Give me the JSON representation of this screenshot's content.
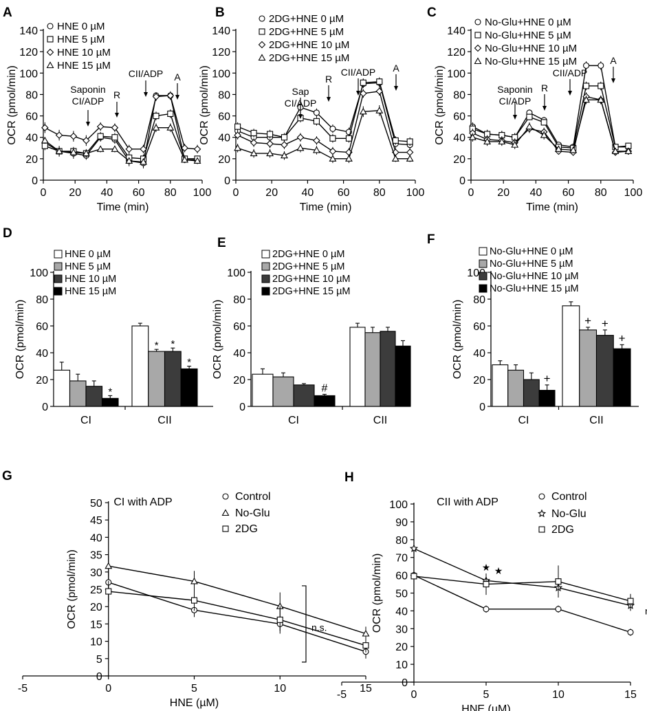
{
  "figure": {
    "colors": {
      "axis": "#000000",
      "bar_0": "#ffffff",
      "bar_5": "#a8a8a8",
      "bar_10": "#3c3c3c",
      "bar_15": "#000000",
      "line": "#000000",
      "marker_fill": "#ffffff"
    }
  },
  "chart_data": [
    {
      "id": "A",
      "panel_letter": "A",
      "type": "line",
      "xlabel": "Time (min)",
      "ylabel": "OCR (pmol/min)",
      "xlim": [
        0,
        100
      ],
      "ylim": [
        0,
        140
      ],
      "xticks": [
        "0",
        "20",
        "40",
        "60",
        "80",
        "100"
      ],
      "yticks": [
        "0",
        "20",
        "40",
        "60",
        "80",
        "100",
        "120",
        "140"
      ],
      "x": [
        1,
        10,
        19,
        27,
        36,
        45,
        54,
        63,
        71,
        80,
        89,
        97
      ],
      "series": [
        {
          "name": "HNE 0 µM",
          "marker": "circle",
          "values": [
            35,
            27,
            25,
            23,
            40,
            38,
            18,
            16,
            79,
            79,
            19,
            19
          ],
          "errors": [
            5,
            5,
            5,
            4,
            4,
            4,
            5,
            5,
            3,
            3,
            3,
            3
          ]
        },
        {
          "name": "HNE 5 µM",
          "marker": "square",
          "values": [
            32,
            27,
            27,
            25,
            41,
            40,
            21,
            20,
            60,
            62,
            20,
            20
          ],
          "errors": [
            4,
            4,
            4,
            4,
            4,
            4,
            4,
            4,
            4,
            4,
            3,
            3
          ]
        },
        {
          "name": "HNE 10 µM",
          "marker": "diamond",
          "values": [
            49,
            42,
            41,
            37,
            50,
            49,
            29,
            29,
            78,
            79,
            30,
            29
          ],
          "errors": [
            5,
            5,
            5,
            5,
            4,
            4,
            4,
            4,
            4,
            4,
            4,
            4
          ]
        },
        {
          "name": "HNE 15 µM",
          "marker": "triangle",
          "values": [
            37,
            27,
            26,
            25,
            29,
            29,
            18,
            17,
            49,
            49,
            19,
            18
          ],
          "errors": [
            3,
            3,
            3,
            3,
            3,
            3,
            3,
            3,
            4,
            4,
            3,
            3
          ]
        }
      ],
      "annotations": [
        {
          "lines": [
            "Saponin",
            "CI/ADP"
          ],
          "x": 28
        },
        {
          "lines": [
            "R"
          ],
          "x": 45
        },
        {
          "lines": [
            "CII/ADP"
          ],
          "x": 63
        },
        {
          "lines": [
            "A"
          ],
          "x": 81
        }
      ]
    },
    {
      "id": "B",
      "panel_letter": "B",
      "type": "line",
      "xlabel": "Time (min)",
      "ylabel": "OCR (pmol/min)",
      "xlim": [
        0,
        100
      ],
      "ylim": [
        0,
        140
      ],
      "xticks": [
        "0",
        "20",
        "40",
        "60",
        "80",
        "100"
      ],
      "yticks": [
        "0",
        "20",
        "40",
        "60",
        "80",
        "100",
        "120",
        "140"
      ],
      "x": [
        1,
        10,
        19,
        27,
        36,
        45,
        54,
        63,
        71,
        80,
        89,
        97
      ],
      "series": [
        {
          "name": "2DG+HNE 0 µM",
          "marker": "circle",
          "values": [
            46,
            40,
            40,
            40,
            68,
            63,
            48,
            45,
            90,
            91,
            34,
            33
          ],
          "errors": [
            4,
            4,
            4,
            4,
            4,
            4,
            4,
            4,
            4,
            4,
            4,
            4
          ]
        },
        {
          "name": "2DG+HNE 5 µM",
          "marker": "square",
          "values": [
            50,
            44,
            43,
            40,
            58,
            55,
            39,
            39,
            91,
            92,
            37,
            36
          ],
          "errors": [
            4,
            4,
            4,
            4,
            4,
            4,
            4,
            4,
            4,
            4,
            4,
            4
          ]
        },
        {
          "name": "2DG+HNE 10 µM",
          "marker": "diamond",
          "values": [
            42,
            35,
            34,
            33,
            40,
            37,
            27,
            26,
            81,
            83,
            26,
            26
          ],
          "errors": [
            4,
            4,
            4,
            4,
            4,
            4,
            4,
            4,
            4,
            4,
            4,
            4
          ]
        },
        {
          "name": "2DG+HNE 15 µM",
          "marker": "triangle",
          "values": [
            30,
            25,
            25,
            23,
            30,
            28,
            20,
            20,
            64,
            65,
            20,
            20
          ],
          "errors": [
            4,
            4,
            4,
            4,
            4,
            4,
            4,
            4,
            5,
            5,
            3,
            3
          ]
        }
      ],
      "annotations": [
        {
          "lines": [
            "Sap",
            "CI/ADP"
          ],
          "x": 28
        },
        {
          "lines": [
            "R"
          ],
          "x": 45
        },
        {
          "lines": [
            "CII/ADP"
          ],
          "x": 63
        },
        {
          "lines": [
            "A"
          ],
          "x": 87
        }
      ]
    },
    {
      "id": "C",
      "panel_letter": "C",
      "type": "line",
      "xlabel": "Time (min)",
      "ylabel": "OCR (pmol/min)",
      "xlim": [
        0,
        100
      ],
      "ylim": [
        0,
        140
      ],
      "xticks": [
        "0",
        "20",
        "40",
        "60",
        "80",
        "100"
      ],
      "yticks": [
        "0",
        "20",
        "40",
        "60",
        "80",
        "100",
        "120",
        "140"
      ],
      "x": [
        1,
        10,
        19,
        27,
        36,
        45,
        54,
        63,
        71,
        80,
        89,
        97
      ],
      "series": [
        {
          "name": "No-Glu+HNE 0 µM",
          "marker": "circle",
          "values": [
            50,
            43,
            42,
            40,
            63,
            56,
            33,
            31,
            107,
            107,
            31,
            31
          ],
          "errors": [
            4,
            4,
            4,
            4,
            3,
            3,
            3,
            3,
            4,
            4,
            3,
            3
          ]
        },
        {
          "name": "No-Glu+HNE 5 µM",
          "marker": "square",
          "values": [
            48,
            43,
            42,
            40,
            59,
            54,
            31,
            30,
            88,
            88,
            31,
            32
          ],
          "errors": [
            4,
            4,
            4,
            4,
            3,
            3,
            3,
            3,
            4,
            4,
            3,
            3
          ]
        },
        {
          "name": "No-Glu+HNE 10 µM",
          "marker": "diamond",
          "values": [
            44,
            38,
            37,
            35,
            48,
            45,
            27,
            26,
            78,
            75,
            26,
            27
          ],
          "errors": [
            4,
            4,
            4,
            4,
            4,
            4,
            3,
            3,
            4,
            4,
            3,
            3
          ]
        },
        {
          "name": "No-Glu+HNE 15 µM",
          "marker": "triangle",
          "values": [
            40,
            36,
            36,
            33,
            50,
            42,
            29,
            28,
            75,
            75,
            27,
            27
          ],
          "errors": [
            4,
            4,
            4,
            4,
            4,
            4,
            3,
            3,
            4,
            4,
            3,
            3
          ]
        }
      ],
      "annotations": [
        {
          "lines": [
            "Saponin",
            "CI/ADP"
          ],
          "x": 28
        },
        {
          "lines": [
            "R"
          ],
          "x": 45
        },
        {
          "lines": [
            "CII/ADP"
          ],
          "x": 63
        },
        {
          "lines": [
            "A"
          ],
          "x": 87
        }
      ]
    },
    {
      "id": "D",
      "panel_letter": "D",
      "type": "bar",
      "ylabel": "OCR (pmol/min)",
      "ylim": [
        0,
        100
      ],
      "yticks": [
        "0",
        "20",
        "40",
        "60",
        "80",
        "100"
      ],
      "categories": [
        "CI",
        "CII"
      ],
      "series": [
        {
          "name": "HNE 0 µM",
          "color": "#ffffff",
          "values": [
            27,
            60
          ],
          "errors": [
            6,
            2
          ],
          "marks": [
            "",
            ""
          ]
        },
        {
          "name": "HNE 5 µM",
          "color": "#a8a8a8",
          "values": [
            19,
            41
          ],
          "errors": [
            5,
            1.5
          ],
          "marks": [
            "",
            "*"
          ]
        },
        {
          "name": "HNE 10 µM",
          "color": "#3c3c3c",
          "values": [
            15,
            41
          ],
          "errors": [
            4,
            2.5
          ],
          "marks": [
            "",
            "*"
          ]
        },
        {
          "name": "HNE 15 µM",
          "color": "#000000",
          "values": [
            6,
            28
          ],
          "errors": [
            2,
            2
          ],
          "marks": [
            "*",
            "*"
          ]
        }
      ]
    },
    {
      "id": "E",
      "panel_letter": "E",
      "type": "bar",
      "ylabel": "OCR (pmol/min)",
      "ylim": [
        0,
        100
      ],
      "yticks": [
        "0",
        "20",
        "40",
        "60",
        "80",
        "100"
      ],
      "categories": [
        "CI",
        "CII"
      ],
      "series": [
        {
          "name": "2DG+HNE 0 µM",
          "color": "#ffffff",
          "values": [
            24,
            59
          ],
          "errors": [
            4,
            3
          ],
          "marks": [
            "",
            ""
          ]
        },
        {
          "name": "2DG+HNE 5 µM",
          "color": "#a8a8a8",
          "values": [
            22,
            55
          ],
          "errors": [
            3,
            4
          ],
          "marks": [
            "",
            ""
          ]
        },
        {
          "name": "2DG+HNE 10 µM",
          "color": "#3c3c3c",
          "values": [
            16,
            56
          ],
          "errors": [
            1,
            3
          ],
          "marks": [
            "",
            ""
          ]
        },
        {
          "name": "2DG+HNE 15 µM",
          "color": "#000000",
          "values": [
            8,
            45
          ],
          "errors": [
            1,
            4
          ],
          "marks": [
            "#",
            ""
          ]
        }
      ]
    },
    {
      "id": "F",
      "panel_letter": "F",
      "type": "bar",
      "ylabel": "OCR (pmol/min)",
      "ylim": [
        0,
        100
      ],
      "yticks": [
        "0",
        "20",
        "40",
        "60",
        "80",
        "100"
      ],
      "categories": [
        "CI",
        "CII"
      ],
      "series": [
        {
          "name": "No-Glu+HNE 0 µM",
          "color": "#ffffff",
          "values": [
            31,
            75
          ],
          "errors": [
            3,
            3
          ],
          "marks": [
            "",
            ""
          ]
        },
        {
          "name": "No-Glu+HNE 5 µM",
          "color": "#a8a8a8",
          "values": [
            27,
            57
          ],
          "errors": [
            4,
            2
          ],
          "marks": [
            "",
            "+"
          ]
        },
        {
          "name": "No-Glu+HNE 10 µM",
          "color": "#3c3c3c",
          "values": [
            20,
            53
          ],
          "errors": [
            5,
            4
          ],
          "marks": [
            "",
            "+"
          ]
        },
        {
          "name": "No-Glu+HNE 15 µM",
          "color": "#000000",
          "values": [
            12,
            43
          ],
          "errors": [
            4,
            3
          ],
          "marks": [
            "+",
            "+"
          ]
        }
      ]
    },
    {
      "id": "G",
      "panel_letter": "G",
      "type": "line",
      "title": "CI with ADP",
      "xlabel": "HNE (µM)",
      "ylabel": "OCR (pmol/min)",
      "xlim": [
        -5,
        15
      ],
      "ylim": [
        0,
        50
      ],
      "xticks": [
        "-5",
        "0",
        "5",
        "10",
        "15"
      ],
      "yticks": [
        "0",
        "5",
        "10",
        "15",
        "20",
        "25",
        "30",
        "35",
        "40",
        "45",
        "50"
      ],
      "x": [
        0,
        5,
        10,
        15
      ],
      "series": [
        {
          "name": "Control",
          "marker": "circle",
          "values": [
            27,
            19,
            15,
            7
          ],
          "errors": [
            3,
            2,
            2,
            2
          ]
        },
        {
          "name": "No-Glu",
          "marker": "triangle",
          "values": [
            31.7,
            27.3,
            20.1,
            12.2
          ],
          "errors": [
            3,
            3,
            4,
            2
          ]
        },
        {
          "name": "2DG",
          "marker": "square",
          "values": [
            24.4,
            21.8,
            16.2,
            8.8
          ],
          "errors": [
            3,
            3,
            4,
            2
          ]
        }
      ],
      "bracket_label": "n.s."
    },
    {
      "id": "H",
      "panel_letter": "H",
      "type": "line",
      "title": "CII with ADP",
      "xlabel": "HNE (µM)",
      "ylabel": "OCR (pmol/min)",
      "xlim": [
        -5,
        15
      ],
      "ylim": [
        0,
        100
      ],
      "xticks": [
        "-5",
        "0",
        "5",
        "10",
        "15"
      ],
      "yticks": [
        "0",
        "10",
        "20",
        "30",
        "40",
        "50",
        "60",
        "70",
        "80",
        "90",
        "100"
      ],
      "x": [
        0,
        5,
        10,
        15
      ],
      "series": [
        {
          "name": "Control",
          "marker": "circle",
          "values": [
            60,
            41,
            41,
            28
          ],
          "errors": [
            2,
            2,
            2,
            2
          ]
        },
        {
          "name": "No-Glu",
          "marker": "star",
          "values": [
            75,
            57,
            53,
            43
          ],
          "errors": [
            8,
            2,
            4,
            3
          ]
        },
        {
          "name": "2DG",
          "marker": "square",
          "values": [
            59.5,
            55,
            56.5,
            45.5
          ],
          "errors": [
            6,
            6,
            9,
            4
          ]
        }
      ],
      "star_marks": [
        "★",
        "★"
      ],
      "side_label": "n.s."
    }
  ]
}
